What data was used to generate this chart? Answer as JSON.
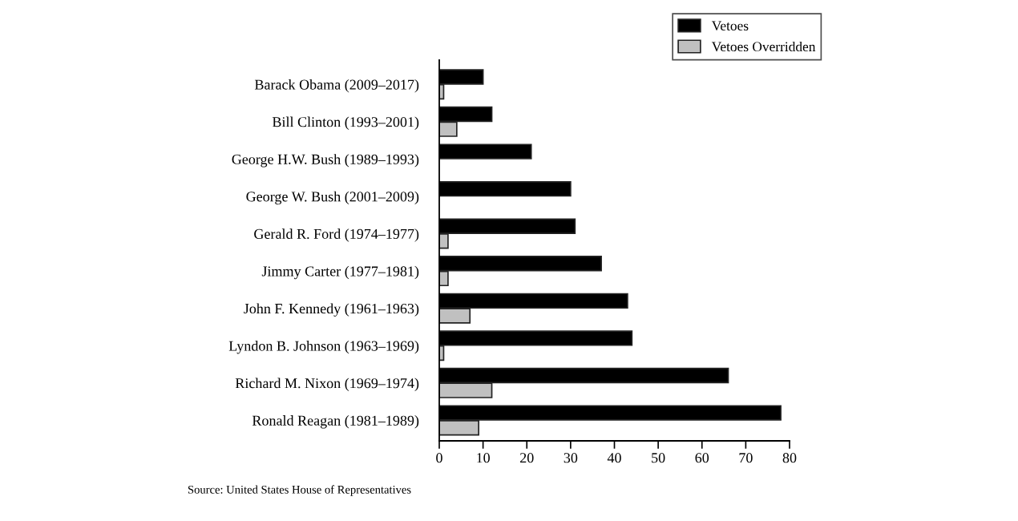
{
  "chart_data": {
    "type": "bar",
    "orientation": "horizontal",
    "categories": [
      "Barack Obama (2009–2017)",
      "Bill Clinton (1993–2001)",
      "George H.W. Bush (1989–1993)",
      "George W. Bush (2001–2009)",
      "Gerald R. Ford (1974–1977)",
      "Jimmy Carter (1977–1981)",
      "John F. Kennedy (1961–1963)",
      "Lyndon B. Johnson (1963–1969)",
      "Richard M. Nixon (1969–1974)",
      "Ronald Reagan (1981–1989)"
    ],
    "series": [
      {
        "name": "Vetoes",
        "color": "#000000",
        "values": [
          10,
          12,
          21,
          30,
          31,
          37,
          43,
          44,
          66,
          78
        ]
      },
      {
        "name": "Vetoes Overridden",
        "color": "#c0c0c0",
        "values": [
          1,
          4,
          0,
          0,
          2,
          2,
          7,
          1,
          12,
          9
        ]
      }
    ],
    "xlim": [
      0,
      80
    ],
    "xticks": [
      0,
      10,
      20,
      30,
      40,
      50,
      60,
      70,
      80
    ],
    "grid": false,
    "legend": "top right",
    "annotations": [
      "Source: United States House of Representatives"
    ]
  }
}
